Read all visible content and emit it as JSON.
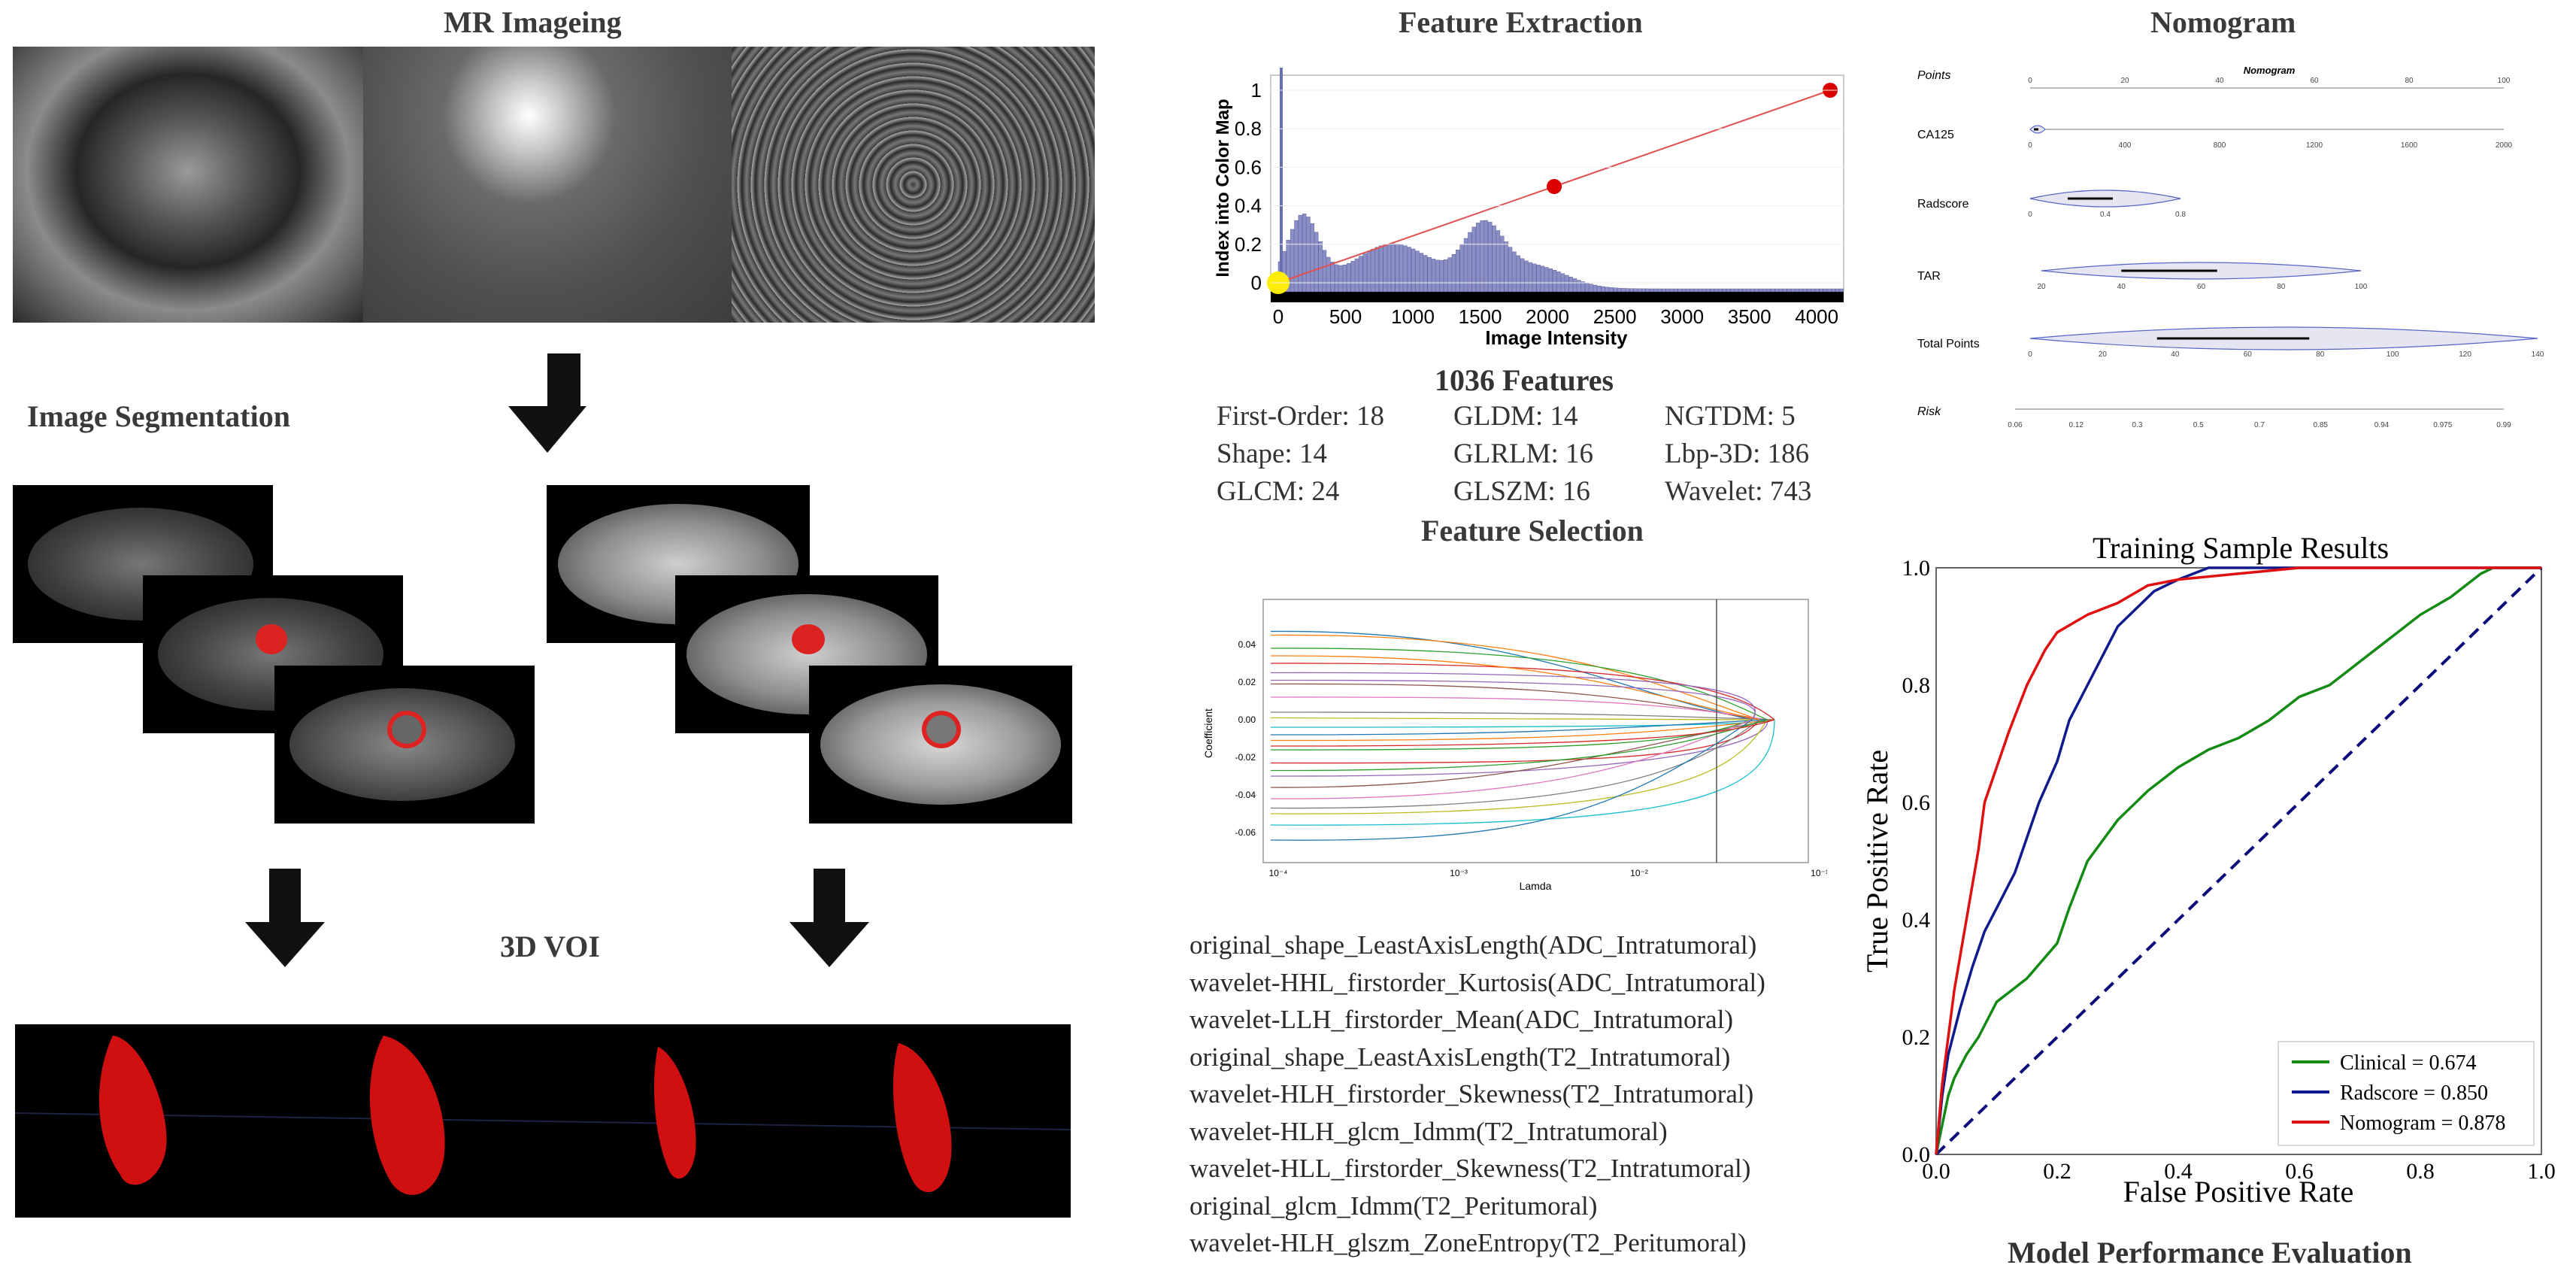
{
  "sections": {
    "mr": "MR Imageing",
    "segmentation": "Image Segmentation",
    "voi": "3D VOI",
    "feature_extraction": "Feature Extraction",
    "features_count": "1036 Features",
    "feature_selection": "Feature Selection",
    "nomogram": "Nomogram",
    "model_eval": "Model Performance Evaluation"
  },
  "features": [
    {
      "label": "First-Order: 18"
    },
    {
      "label": "GLDM: 14"
    },
    {
      "label": "NGTDM: 5"
    },
    {
      "label": "Shape: 14"
    },
    {
      "label": "GLRLM: 16"
    },
    {
      "label": "Lbp-3D: 186"
    },
    {
      "label": "GLCM: 24"
    },
    {
      "label": "GLSZM: 16"
    },
    {
      "label": "Wavelet: 743"
    }
  ],
  "selected_features": [
    "original_shape_LeastAxisLength(ADC_Intratumoral)",
    "wavelet-HHL_firstorder_Kurtosis(ADC_Intratumoral)",
    "wavelet-LLH_firstorder_Mean(ADC_Intratumoral)",
    "original_shape_LeastAxisLength(T2_Intratumoral)",
    "wavelet-HLH_firstorder_Skewness(T2_Intratumoral)",
    "wavelet-HLH_glcm_Idmm(T2_Intratumoral)",
    "wavelet-HLL_firstorder_Skewness(T2_Intratumoral)",
    "original_glcm_Idmm(T2_Peritumoral)",
    "wavelet-HLH_glszm_ZoneEntropy(T2_Peritumoral)"
  ],
  "histogram_chart": {
    "xlabel": "Image Intensity",
    "ylabel": "Index into Color Map",
    "x_ticks": [
      "0",
      "500",
      "1000",
      "1500",
      "2000",
      "2500",
      "3000",
      "3500",
      "4000"
    ],
    "y_ticks": [
      "0",
      "0.2",
      "0.4",
      "0.6",
      "0.8",
      "1"
    ],
    "colormap_points": [
      {
        "x": 0,
        "y": 0,
        "color": "#ffee00"
      },
      {
        "x": 2050,
        "y": 0.5,
        "color": "#dd0000"
      },
      {
        "x": 4100,
        "y": 1,
        "color": "#dd0000"
      }
    ]
  },
  "lasso_chart": {
    "xlabel": "Lamda",
    "ylabel": "Coefficient",
    "y_ticks": [
      "0.04",
      "0.02",
      "0.00",
      "-0.02",
      "-0.04",
      "-0.06"
    ],
    "x_ticks": [
      "10⁻⁴",
      "10⁻³",
      "10⁻²",
      "10⁻¹"
    ]
  },
  "nomogram_chart": {
    "title": "Nomogram",
    "rows": [
      {
        "label": "Points",
        "ticks": [
          "0",
          "20",
          "40",
          "60",
          "80",
          "100"
        ]
      },
      {
        "label": "CA125",
        "ticks": [
          "0",
          "400",
          "800",
          "1200",
          "1600",
          "2000"
        ]
      },
      {
        "label": "Radscore",
        "ticks": [
          "0",
          "0.4",
          "0.8"
        ]
      },
      {
        "label": "TAR",
        "ticks": [
          "20",
          "40",
          "60",
          "80",
          "100"
        ]
      },
      {
        "label": "Total Points",
        "ticks": [
          "0",
          "20",
          "40",
          "60",
          "80",
          "100",
          "120",
          "140"
        ]
      },
      {
        "label": "Risk",
        "ticks": [
          "0.06",
          "0.12",
          "0.3",
          "0.5",
          "0.7",
          "0.85",
          "0.94",
          "0.975",
          "0.99"
        ]
      }
    ]
  },
  "chart_data": {
    "type": "line",
    "title": "Training Sample Results",
    "xlabel": "False Positive Rate",
    "ylabel": "True Positive Rate",
    "xlim": [
      0,
      1
    ],
    "ylim": [
      0,
      1
    ],
    "x_ticks": [
      "0.0",
      "0.2",
      "0.4",
      "0.6",
      "0.8",
      "1.0"
    ],
    "y_ticks": [
      "0.0",
      "0.2",
      "0.4",
      "0.6",
      "0.8",
      "1.0"
    ],
    "legend_position": "bottom-right",
    "series": [
      {
        "name": "Clinical = 0.674",
        "color": "#138a13",
        "points": [
          [
            0,
            0
          ],
          [
            0.01,
            0.05
          ],
          [
            0.02,
            0.1
          ],
          [
            0.03,
            0.13
          ],
          [
            0.05,
            0.17
          ],
          [
            0.07,
            0.2
          ],
          [
            0.1,
            0.26
          ],
          [
            0.15,
            0.3
          ],
          [
            0.2,
            0.36
          ],
          [
            0.22,
            0.42
          ],
          [
            0.25,
            0.5
          ],
          [
            0.3,
            0.57
          ],
          [
            0.35,
            0.62
          ],
          [
            0.4,
            0.66
          ],
          [
            0.45,
            0.69
          ],
          [
            0.5,
            0.71
          ],
          [
            0.55,
            0.74
          ],
          [
            0.6,
            0.78
          ],
          [
            0.65,
            0.8
          ],
          [
            0.7,
            0.84
          ],
          [
            0.75,
            0.88
          ],
          [
            0.8,
            0.92
          ],
          [
            0.85,
            0.95
          ],
          [
            0.9,
            0.99
          ],
          [
            0.92,
            1.0
          ],
          [
            1.0,
            1.0
          ]
        ]
      },
      {
        "name": "Radscore = 0.850",
        "color": "#101a8c",
        "points": [
          [
            0,
            0
          ],
          [
            0.01,
            0.1
          ],
          [
            0.02,
            0.17
          ],
          [
            0.04,
            0.25
          ],
          [
            0.06,
            0.32
          ],
          [
            0.08,
            0.38
          ],
          [
            0.1,
            0.42
          ],
          [
            0.13,
            0.48
          ],
          [
            0.15,
            0.54
          ],
          [
            0.17,
            0.6
          ],
          [
            0.2,
            0.67
          ],
          [
            0.22,
            0.74
          ],
          [
            0.25,
            0.8
          ],
          [
            0.28,
            0.86
          ],
          [
            0.3,
            0.9
          ],
          [
            0.33,
            0.93
          ],
          [
            0.36,
            0.96
          ],
          [
            0.4,
            0.98
          ],
          [
            0.45,
            1.0
          ],
          [
            1.0,
            1.0
          ]
        ]
      },
      {
        "name": "Nomogram = 0.878",
        "color": "#e01010",
        "points": [
          [
            0,
            0
          ],
          [
            0.01,
            0.12
          ],
          [
            0.02,
            0.2
          ],
          [
            0.03,
            0.28
          ],
          [
            0.05,
            0.4
          ],
          [
            0.07,
            0.52
          ],
          [
            0.08,
            0.6
          ],
          [
            0.1,
            0.66
          ],
          [
            0.12,
            0.72
          ],
          [
            0.15,
            0.8
          ],
          [
            0.18,
            0.86
          ],
          [
            0.2,
            0.89
          ],
          [
            0.25,
            0.92
          ],
          [
            0.3,
            0.94
          ],
          [
            0.35,
            0.97
          ],
          [
            0.4,
            0.98
          ],
          [
            0.5,
            0.99
          ],
          [
            0.6,
            1.0
          ],
          [
            1.0,
            1.0
          ]
        ]
      }
    ]
  }
}
